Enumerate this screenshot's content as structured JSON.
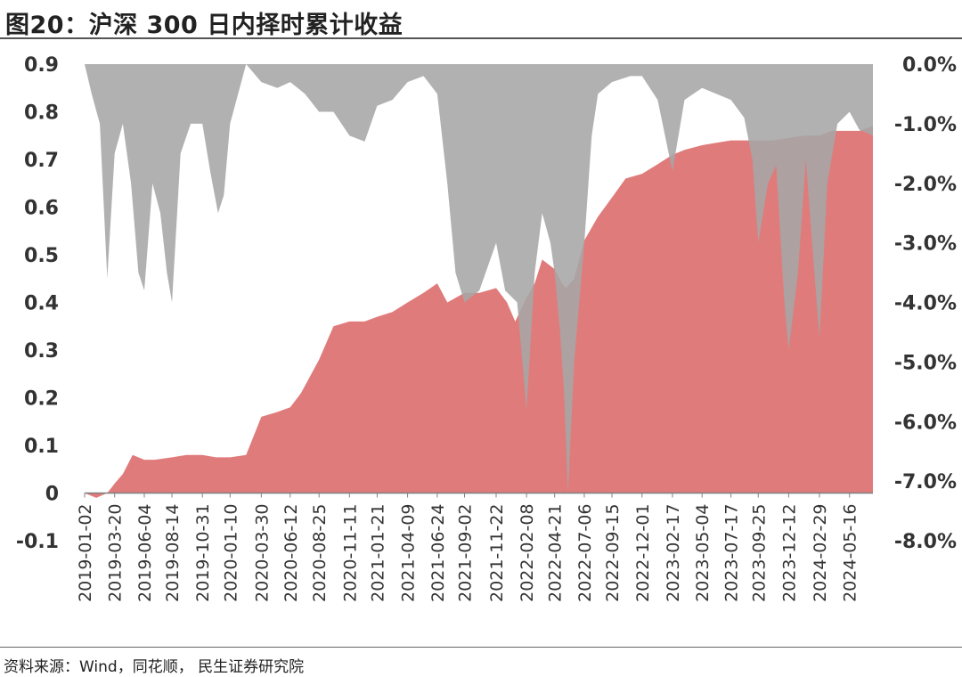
{
  "figure": {
    "title": "图20：沪深 300 日内择时累计收益",
    "source": "资料来源：Wind，同花顺， 民生证券研究院"
  },
  "chart_data": {
    "type": "area",
    "title": "",
    "xlabel": "",
    "ylabel": "",
    "ylim": [
      -0.1,
      0.9
    ],
    "y2lim": [
      -8.0,
      0.0
    ],
    "grid": false,
    "legend": "none",
    "y_ticks": [
      -0.1,
      0,
      0.1,
      0.2,
      0.3,
      0.4,
      0.5,
      0.6,
      0.7,
      0.8,
      0.9
    ],
    "y_tick_labels": [
      "-0.1",
      "0",
      "0.1",
      "0.2",
      "0.3",
      "0.4",
      "0.5",
      "0.6",
      "0.7",
      "0.8",
      "0.9"
    ],
    "y2_ticks": [
      -8.0,
      -7.0,
      -6.0,
      -5.0,
      -4.0,
      -3.0,
      -2.0,
      -1.0,
      0.0
    ],
    "y2_tick_labels": [
      "-8.0%",
      "-7.0%",
      "-6.0%",
      "-5.0%",
      "-4.0%",
      "-3.0%",
      "-2.0%",
      "-1.0%",
      "0.0%"
    ],
    "x_tick_labels": [
      "2019-01-02",
      "2019-03-20",
      "2019-06-04",
      "2019-08-14",
      "2019-10-31",
      "2020-01-10",
      "2020-03-30",
      "2020-06-12",
      "2020-08-25",
      "2020-11-11",
      "2021-01-21",
      "2021-04-09",
      "2021-06-24",
      "2021-09-02",
      "2021-11-22",
      "2022-02-08",
      "2022-04-21",
      "2022-07-06",
      "2022-09-15",
      "2022-12-01",
      "2023-02-17",
      "2023-05-04",
      "2023-07-17",
      "2023-09-25",
      "2023-12-12",
      "2024-02-29",
      "2024-05-16"
    ],
    "colors": {
      "cumulative": "#E07B7B",
      "drawdown": "#A6A6A6",
      "axis": "#808080"
    },
    "series": [
      {
        "role": "cumulative_return",
        "axis": "left",
        "kind": "area",
        "x": [
          "2019-01-02",
          "2019-02-01",
          "2019-03-01",
          "2019-03-20",
          "2019-04-10",
          "2019-05-05",
          "2019-06-04",
          "2019-07-01",
          "2019-08-14",
          "2019-09-20",
          "2019-10-31",
          "2019-12-05",
          "2020-01-10",
          "2020-02-20",
          "2020-03-30",
          "2020-05-10",
          "2020-06-12",
          "2020-07-10",
          "2020-08-25",
          "2020-10-01",
          "2020-11-11",
          "2020-12-20",
          "2021-01-21",
          "2021-03-01",
          "2021-04-09",
          "2021-05-20",
          "2021-06-24",
          "2021-07-20",
          "2021-09-02",
          "2021-10-10",
          "2021-11-22",
          "2021-12-20",
          "2022-01-10",
          "2022-02-08",
          "2022-03-01",
          "2022-03-20",
          "2022-04-21",
          "2022-05-10",
          "2022-05-20",
          "2022-06-10",
          "2022-07-06",
          "2022-08-10",
          "2022-09-15",
          "2022-10-20",
          "2022-12-01",
          "2023-01-10",
          "2023-02-17",
          "2023-03-20",
          "2023-05-04",
          "2023-06-10",
          "2023-07-17",
          "2023-08-20",
          "2023-09-25",
          "2023-11-01",
          "2023-12-12",
          "2024-01-20",
          "2024-02-29",
          "2024-04-01",
          "2024-05-16",
          "2024-06-10",
          "2024-07-15"
        ],
        "values": [
          0.0,
          -0.01,
          0.0,
          0.02,
          0.04,
          0.08,
          0.07,
          0.07,
          0.075,
          0.08,
          0.08,
          0.075,
          0.075,
          0.08,
          0.16,
          0.17,
          0.18,
          0.21,
          0.28,
          0.35,
          0.36,
          0.36,
          0.37,
          0.38,
          0.4,
          0.42,
          0.44,
          0.4,
          0.42,
          0.42,
          0.43,
          0.4,
          0.36,
          0.41,
          0.44,
          0.49,
          0.47,
          0.44,
          0.43,
          0.45,
          0.53,
          0.58,
          0.62,
          0.66,
          0.67,
          0.69,
          0.71,
          0.72,
          0.73,
          0.735,
          0.74,
          0.74,
          0.74,
          0.74,
          0.745,
          0.75,
          0.75,
          0.76,
          0.76,
          0.76,
          0.77
        ]
      },
      {
        "role": "drawdown",
        "axis": "right",
        "kind": "area",
        "x": [
          "2019-01-02",
          "2019-01-20",
          "2019-02-10",
          "2019-03-01",
          "2019-03-20",
          "2019-04-10",
          "2019-05-01",
          "2019-05-20",
          "2019-06-04",
          "2019-06-25",
          "2019-07-15",
          "2019-08-01",
          "2019-08-14",
          "2019-09-05",
          "2019-10-01",
          "2019-10-31",
          "2019-11-20",
          "2019-12-10",
          "2019-12-25",
          "2020-01-10",
          "2020-02-20",
          "2020-03-30",
          "2020-05-10",
          "2020-06-12",
          "2020-07-20",
          "2020-08-25",
          "2020-10-01",
          "2020-11-11",
          "2020-12-20",
          "2021-01-21",
          "2021-03-01",
          "2021-04-09",
          "2021-05-20",
          "2021-06-24",
          "2021-07-20",
          "2021-08-10",
          "2021-09-02",
          "2021-10-10",
          "2021-11-22",
          "2021-12-15",
          "2022-01-15",
          "2022-02-08",
          "2022-03-01",
          "2022-03-20",
          "2022-04-10",
          "2022-04-21",
          "2022-05-05",
          "2022-05-15",
          "2022-05-25",
          "2022-06-10",
          "2022-07-06",
          "2022-07-25",
          "2022-08-10",
          "2022-09-15",
          "2022-11-01",
          "2022-12-01",
          "2023-01-10",
          "2023-02-17",
          "2023-03-20",
          "2023-05-04",
          "2023-07-17",
          "2023-08-20",
          "2023-09-10",
          "2023-09-25",
          "2023-10-20",
          "2023-11-10",
          "2023-12-01",
          "2023-12-12",
          "2024-01-05",
          "2024-01-25",
          "2024-02-10",
          "2024-02-29",
          "2024-03-20",
          "2024-04-15",
          "2024-05-16",
          "2024-06-10",
          "2024-07-15"
        ],
        "values": [
          0.0,
          -0.5,
          -1.0,
          -3.6,
          -1.5,
          -1.0,
          -2.0,
          -3.5,
          -3.8,
          -2.0,
          -2.5,
          -3.5,
          -4.0,
          -1.5,
          -1.0,
          -1.0,
          -1.8,
          -2.5,
          -2.2,
          -1.0,
          0.0,
          -0.3,
          -0.4,
          -0.3,
          -0.5,
          -0.8,
          -0.8,
          -1.2,
          -1.3,
          -0.7,
          -0.6,
          -0.3,
          -0.2,
          -0.5,
          -2.0,
          -3.5,
          -4.0,
          -3.8,
          -3.0,
          -3.8,
          -4.0,
          -5.8,
          -3.5,
          -2.5,
          -3.0,
          -3.5,
          -4.5,
          -5.5,
          -7.2,
          -5.0,
          -3.0,
          -1.2,
          -0.5,
          -0.3,
          -0.2,
          -0.2,
          -0.6,
          -1.8,
          -0.6,
          -0.4,
          -0.6,
          -0.9,
          -1.6,
          -3.0,
          -2.0,
          -1.7,
          -4.0,
          -4.8,
          -3.5,
          -1.6,
          -3.0,
          -4.6,
          -2.0,
          -1.0,
          -0.8,
          -1.1,
          -1.2
        ]
      }
    ]
  }
}
